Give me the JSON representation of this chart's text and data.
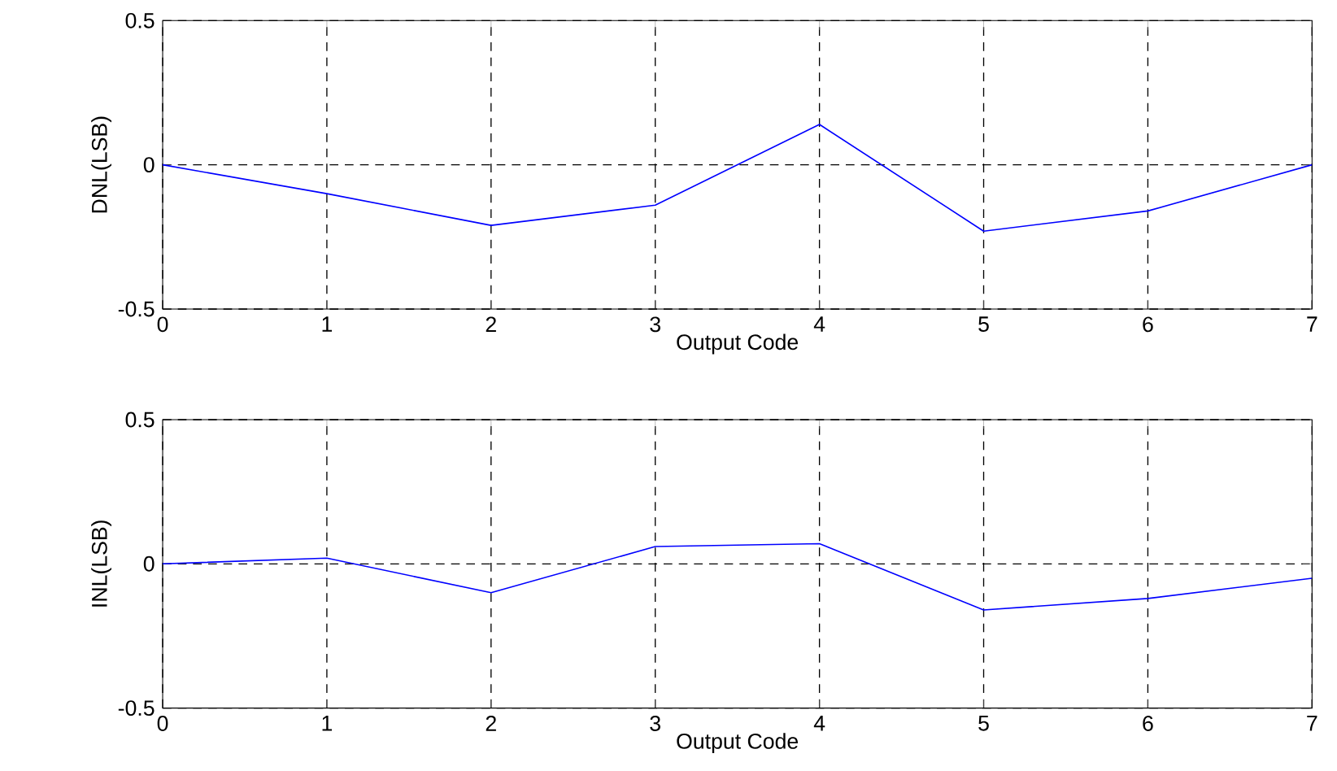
{
  "chart_data": [
    {
      "type": "line",
      "x": [
        0,
        1,
        2,
        3,
        4,
        5,
        6,
        7
      ],
      "series": [
        {
          "color": "#0000ff",
          "values": [
            0,
            -0.1,
            -0.21,
            -0.14,
            0.14,
            -0.23,
            -0.16,
            0
          ]
        }
      ],
      "xlabel": "Output Code",
      "ylabel": "DNL(LSB)",
      "xlim": [
        0,
        7
      ],
      "xticks": [
        0,
        1,
        2,
        3,
        4,
        5,
        6,
        7
      ],
      "ylim": [
        -0.5,
        0.5
      ],
      "yticks": [
        -0.5,
        0,
        0.5
      ],
      "grid": true
    },
    {
      "type": "line",
      "x": [
        0,
        1,
        2,
        3,
        4,
        5,
        6,
        7
      ],
      "series": [
        {
          "color": "#0000ff",
          "values": [
            0,
            0.02,
            -0.1,
            0.06,
            0.07,
            -0.16,
            -0.12,
            -0.05
          ]
        }
      ],
      "xlabel": "Output Code",
      "ylabel": "INL(LSB)",
      "xlim": [
        0,
        7
      ],
      "xticks": [
        0,
        1,
        2,
        3,
        4,
        5,
        6,
        7
      ],
      "ylim": [
        -0.5,
        0.5
      ],
      "yticks": [
        -0.5,
        0,
        0.5
      ],
      "grid": true
    }
  ]
}
